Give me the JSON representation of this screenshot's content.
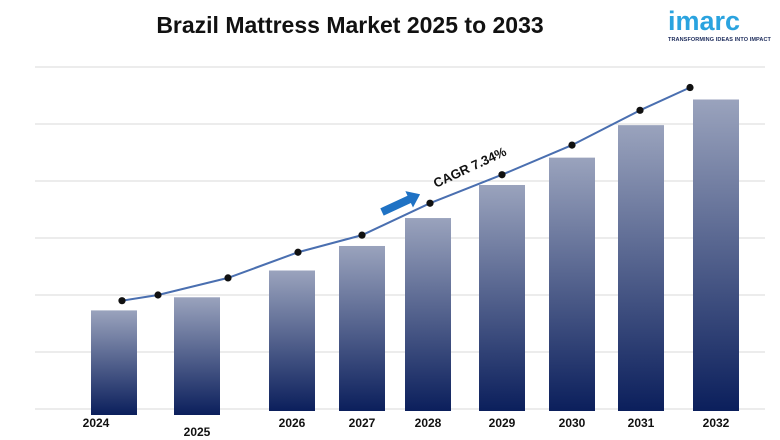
{
  "chart_data": {
    "type": "bar",
    "title": "Brazil Mattress Market 2025 to 2033",
    "xlabel": "",
    "ylabel": "",
    "categories": [
      "2024",
      "2025",
      "2026",
      "2027",
      "2028",
      "2029",
      "2030",
      "2031",
      "2032"
    ],
    "series": [
      {
        "values": [
          1.73,
          1.96,
          2.43,
          2.86,
          3.35,
          3.93,
          4.41,
          4.98,
          5.43
        ]
      }
    ],
    "trend_line": [
      1.9,
      2.0,
      2.3,
      2.75,
      3.05,
      3.61,
      4.11,
      4.63,
      5.24,
      5.64
    ],
    "ylim": [
      0,
      6
    ],
    "grid": true,
    "annotation": "CAGR 7.34%",
    "colors": {
      "bar_top": "#9aa3bd",
      "bar_bottom": "#0b1f5c",
      "line": "#4a6fb0",
      "marker": "#111111",
      "arrow": "#1f72c4"
    }
  },
  "logo": {
    "word": "imarc",
    "tagline": "TRANSFORMING IDEAS INTO IMPACT"
  }
}
